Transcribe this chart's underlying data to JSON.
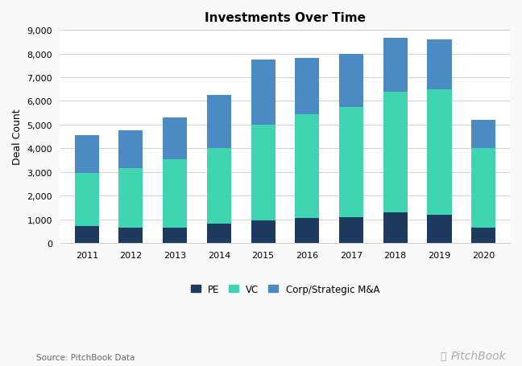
{
  "title": "Investments Over Time",
  "ylabel": "Deal Count",
  "years": [
    2011,
    2012,
    2013,
    2014,
    2015,
    2016,
    2017,
    2018,
    2019,
    2020
  ],
  "pe": [
    700,
    650,
    650,
    800,
    950,
    1050,
    1100,
    1300,
    1200,
    650
  ],
  "vc": [
    2250,
    2500,
    2900,
    3200,
    4050,
    4400,
    4650,
    5100,
    5300,
    3350
  ],
  "corp": [
    1600,
    1600,
    1750,
    2250,
    2750,
    2350,
    2250,
    2250,
    2100,
    1200
  ],
  "color_pe": "#1e3a5f",
  "color_vc": "#40d4b0",
  "color_corp": "#4a8bc4",
  "ylim": [
    0,
    9000
  ],
  "yticks": [
    0,
    1000,
    2000,
    3000,
    4000,
    5000,
    6000,
    7000,
    8000,
    9000
  ],
  "ytick_labels": [
    "0",
    "1,000",
    "2,000",
    "3,000",
    "4,000",
    "5,000",
    "6,000",
    "7,000",
    "8,000",
    "9,000"
  ],
  "source_text": "Source: PitchBook Data",
  "bg_color": "#f9f9f9",
  "plot_bg_color": "#ffffff",
  "grid_color": "#d0d0d0",
  "bar_width": 0.55,
  "title_fontsize": 11,
  "label_fontsize": 9,
  "tick_fontsize": 8,
  "legend_fontsize": 8.5
}
